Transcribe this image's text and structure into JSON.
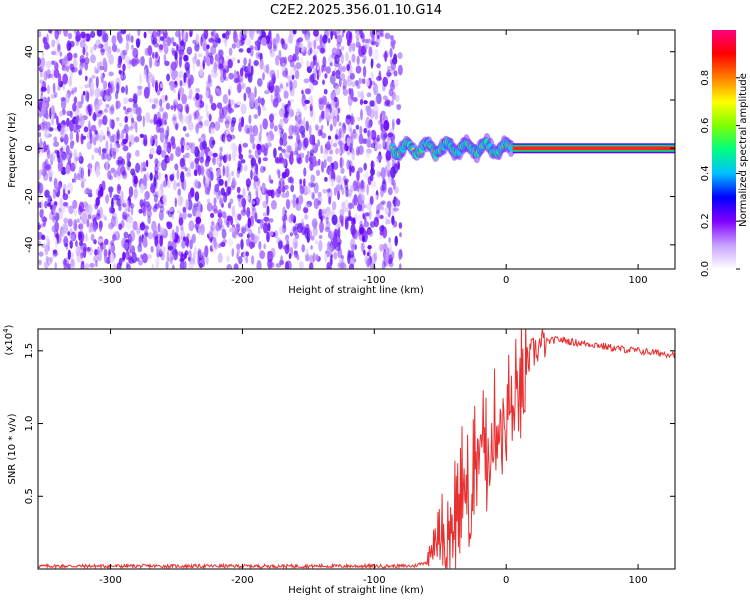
{
  "chart_data": [
    {
      "type": "heatmap",
      "title": "C2E2.2025.356.01.10.G14",
      "xlabel": "Height of straight line (km)",
      "ylabel": "Frequency (Hz)",
      "xlim": [
        -355,
        128
      ],
      "ylim": [
        -50,
        49
      ],
      "xticks": [
        -300,
        -200,
        -100,
        0,
        100
      ],
      "yticks": [
        -40,
        -20,
        0,
        20,
        40
      ],
      "noise_region_xmax": -80,
      "carrier_x_start": 5,
      "colorbar": {
        "label": "Normalized spectral amplitude",
        "range": [
          0.0,
          1.0
        ],
        "ticks": [
          0.0,
          0.2,
          0.4,
          0.6,
          0.8
        ],
        "colors": [
          "#ffffff",
          "#c8a0ff",
          "#8000ff",
          "#0000ff",
          "#00c0ff",
          "#00ff80",
          "#80ff00",
          "#ffff00",
          "#ff8000",
          "#ff0000",
          "#ff0080"
        ]
      }
    },
    {
      "type": "line",
      "xlabel": "Height of straight line (km)",
      "ylabel": "SNR (10 * v/v)",
      "y_multiplier": "(x10",
      "y_multiplier_exp": "4",
      "y_multiplier_close": ")",
      "xlim": [
        -355,
        128
      ],
      "ylim": [
        0.0,
        1.65
      ],
      "xticks": [
        -300,
        -200,
        -100,
        0,
        100
      ],
      "yticks": [
        0.5,
        1.0,
        1.5
      ],
      "ytick_labels": [
        "0.5",
        "1.0",
        "1.5"
      ],
      "line_color": "#e83030",
      "series": [
        {
          "name": "SNR",
          "x": [
            -355,
            -300,
            -200,
            -100,
            -70,
            -60,
            -55,
            -50,
            -45,
            -40,
            -35,
            -32,
            -28,
            -24,
            -20,
            -15,
            -10,
            -5,
            0,
            5,
            10,
            15,
            20,
            25,
            30,
            40,
            50,
            60,
            70,
            80,
            90,
            100,
            110,
            120,
            128
          ],
          "values": [
            0.02,
            0.02,
            0.02,
            0.02,
            0.02,
            0.05,
            0.25,
            0.35,
            0.3,
            0.45,
            0.5,
            0.75,
            0.5,
            0.85,
            0.95,
            0.9,
            1.0,
            1.05,
            1.15,
            1.2,
            1.3,
            1.4,
            1.48,
            1.53,
            1.56,
            1.58,
            1.56,
            1.55,
            1.54,
            1.52,
            1.51,
            1.5,
            1.49,
            1.48,
            1.48
          ]
        }
      ]
    }
  ]
}
